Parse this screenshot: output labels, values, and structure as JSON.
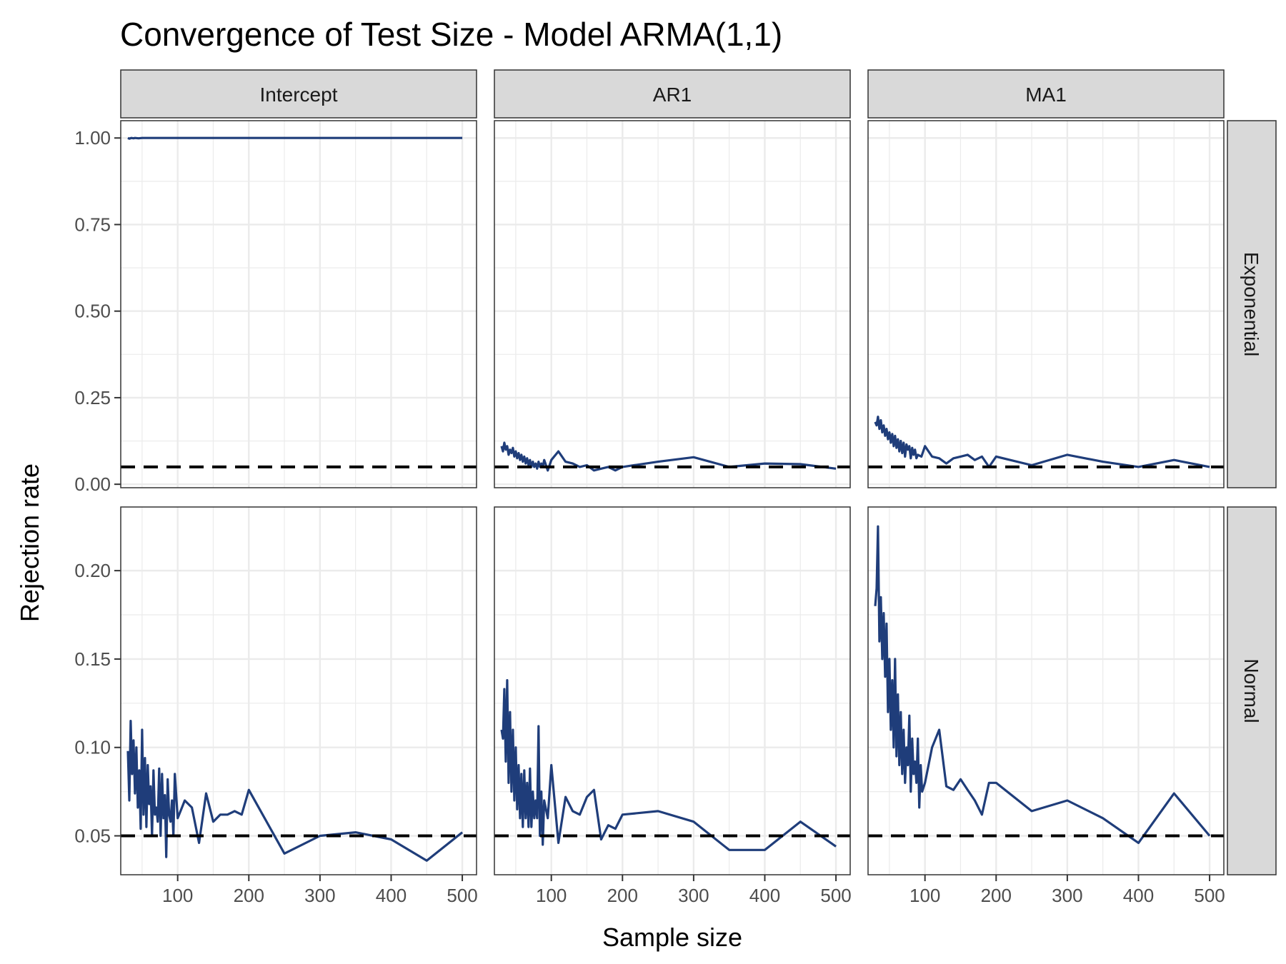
{
  "chart_data": {
    "type": "line",
    "title": "Convergence of Test Size - Model ARMA(1,1)",
    "xlabel": "Sample size",
    "ylabel": "Rejection rate",
    "columns": [
      "Intercept",
      "AR1",
      "MA1"
    ],
    "rows": [
      "Exponential",
      "Normal"
    ],
    "x_ticks": [
      100,
      200,
      300,
      400,
      500
    ],
    "xlim": [
      20,
      520
    ],
    "reference_line": 0.05,
    "colors": {
      "line": "#1f3d7a",
      "reference": "#000000",
      "strip": "#d9d9d9",
      "grid": "#ebebeb"
    },
    "row_scales": {
      "Exponential": {
        "ylim": [
          -0.01,
          1.05
        ],
        "ticks": [
          0.0,
          0.25,
          0.5,
          0.75,
          1.0
        ],
        "tick_labels": [
          "0.00",
          "0.25",
          "0.50",
          "0.75",
          "1.00"
        ]
      },
      "Normal": {
        "ylim": [
          0.028,
          0.236
        ],
        "ticks": [
          0.05,
          0.1,
          0.15,
          0.2
        ],
        "tick_labels": [
          "0.05",
          "0.10",
          "0.15",
          "0.20"
        ]
      }
    },
    "panels": [
      {
        "row": "Exponential",
        "col": "Intercept",
        "x": [
          30,
          32,
          35,
          38,
          40,
          45,
          50,
          60,
          80,
          100,
          150,
          200,
          300,
          400,
          500
        ],
        "y": [
          1.0,
          0.998,
          1.0,
          0.999,
          1.0,
          0.999,
          1.0,
          1.0,
          1.0,
          1.0,
          1.0,
          1.0,
          1.0,
          1.0,
          1.0
        ]
      },
      {
        "row": "Exponential",
        "col": "AR1",
        "x": [
          30,
          32,
          34,
          36,
          38,
          40,
          42,
          44,
          46,
          48,
          50,
          52,
          54,
          56,
          58,
          60,
          62,
          64,
          66,
          68,
          70,
          72,
          74,
          76,
          78,
          80,
          82,
          84,
          86,
          88,
          90,
          95,
          100,
          110,
          120,
          130,
          140,
          150,
          160,
          170,
          180,
          190,
          200,
          250,
          300,
          350,
          400,
          450,
          500
        ],
        "y": [
          0.11,
          0.095,
          0.12,
          0.1,
          0.11,
          0.085,
          0.1,
          0.09,
          0.105,
          0.08,
          0.095,
          0.075,
          0.09,
          0.07,
          0.085,
          0.065,
          0.08,
          0.06,
          0.075,
          0.055,
          0.07,
          0.05,
          0.065,
          0.05,
          0.06,
          0.045,
          0.065,
          0.05,
          0.06,
          0.05,
          0.07,
          0.04,
          0.07,
          0.095,
          0.065,
          0.06,
          0.05,
          0.055,
          0.04,
          0.045,
          0.05,
          0.04,
          0.05,
          0.065,
          0.078,
          0.05,
          0.06,
          0.058,
          0.045
        ]
      },
      {
        "row": "Exponential",
        "col": "MA1",
        "x": [
          30,
          32,
          34,
          36,
          38,
          40,
          42,
          44,
          46,
          48,
          50,
          52,
          54,
          56,
          58,
          60,
          62,
          64,
          66,
          68,
          70,
          72,
          74,
          76,
          78,
          80,
          82,
          84,
          86,
          88,
          90,
          95,
          100,
          110,
          120,
          130,
          140,
          150,
          160,
          170,
          180,
          190,
          200,
          250,
          300,
          350,
          400,
          450,
          500
        ],
        "y": [
          0.18,
          0.17,
          0.195,
          0.16,
          0.185,
          0.15,
          0.17,
          0.14,
          0.16,
          0.13,
          0.15,
          0.12,
          0.145,
          0.11,
          0.14,
          0.105,
          0.13,
          0.095,
          0.125,
          0.09,
          0.12,
          0.08,
          0.115,
          0.1,
          0.11,
          0.075,
          0.105,
          0.085,
          0.1,
          0.075,
          0.085,
          0.08,
          0.11,
          0.08,
          0.075,
          0.06,
          0.075,
          0.08,
          0.085,
          0.07,
          0.08,
          0.05,
          0.08,
          0.055,
          0.085,
          0.065,
          0.05,
          0.07,
          0.05
        ]
      },
      {
        "row": "Normal",
        "col": "Intercept",
        "x": [
          30,
          32,
          34,
          36,
          38,
          40,
          42,
          44,
          46,
          48,
          50,
          52,
          54,
          56,
          58,
          60,
          62,
          64,
          66,
          68,
          70,
          72,
          74,
          76,
          78,
          80,
          82,
          84,
          86,
          88,
          90,
          92,
          94,
          96,
          100,
          110,
          120,
          130,
          140,
          150,
          160,
          170,
          180,
          190,
          200,
          250,
          300,
          350,
          400,
          450,
          500
        ],
        "y": [
          0.098,
          0.07,
          0.115,
          0.085,
          0.104,
          0.074,
          0.1,
          0.066,
          0.087,
          0.054,
          0.11,
          0.062,
          0.094,
          0.055,
          0.09,
          0.068,
          0.078,
          0.05,
          0.087,
          0.062,
          0.066,
          0.058,
          0.088,
          0.05,
          0.085,
          0.06,
          0.073,
          0.038,
          0.082,
          0.062,
          0.058,
          0.07,
          0.05,
          0.085,
          0.06,
          0.07,
          0.066,
          0.046,
          0.074,
          0.058,
          0.062,
          0.062,
          0.064,
          0.062,
          0.076,
          0.04,
          0.05,
          0.052,
          0.048,
          0.036,
          0.052
        ]
      },
      {
        "row": "Normal",
        "col": "AR1",
        "x": [
          30,
          32,
          34,
          36,
          38,
          40,
          42,
          44,
          46,
          48,
          50,
          52,
          54,
          56,
          58,
          60,
          62,
          64,
          66,
          68,
          70,
          72,
          74,
          76,
          78,
          80,
          82,
          84,
          86,
          88,
          90,
          95,
          100,
          110,
          120,
          130,
          140,
          150,
          160,
          170,
          180,
          190,
          200,
          250,
          300,
          350,
          400,
          450,
          500
        ],
        "y": [
          0.11,
          0.105,
          0.133,
          0.092,
          0.138,
          0.08,
          0.12,
          0.075,
          0.11,
          0.07,
          0.1,
          0.065,
          0.09,
          0.06,
          0.085,
          0.055,
          0.087,
          0.06,
          0.08,
          0.055,
          0.088,
          0.055,
          0.075,
          0.06,
          0.07,
          0.06,
          0.112,
          0.05,
          0.075,
          0.045,
          0.07,
          0.06,
          0.09,
          0.046,
          0.072,
          0.064,
          0.062,
          0.072,
          0.076,
          0.048,
          0.056,
          0.054,
          0.062,
          0.064,
          0.058,
          0.042,
          0.042,
          0.058,
          0.044
        ]
      },
      {
        "row": "Normal",
        "col": "MA1",
        "x": [
          30,
          32,
          34,
          36,
          38,
          40,
          42,
          44,
          46,
          48,
          50,
          52,
          54,
          56,
          58,
          60,
          62,
          64,
          66,
          68,
          70,
          72,
          74,
          76,
          78,
          80,
          82,
          84,
          86,
          88,
          90,
          92,
          94,
          96,
          100,
          110,
          120,
          130,
          140,
          150,
          160,
          170,
          180,
          190,
          200,
          250,
          300,
          350,
          400,
          450,
          500
        ],
        "y": [
          0.18,
          0.19,
          0.225,
          0.16,
          0.185,
          0.15,
          0.176,
          0.14,
          0.17,
          0.12,
          0.15,
          0.11,
          0.138,
          0.1,
          0.15,
          0.095,
          0.13,
          0.09,
          0.12,
          0.085,
          0.11,
          0.08,
          0.1,
          0.09,
          0.118,
          0.075,
          0.105,
          0.085,
          0.092,
          0.08,
          0.105,
          0.066,
          0.09,
          0.075,
          0.08,
          0.1,
          0.11,
          0.078,
          0.076,
          0.082,
          0.076,
          0.07,
          0.062,
          0.08,
          0.08,
          0.064,
          0.07,
          0.06,
          0.046,
          0.074,
          0.05
        ]
      }
    ]
  }
}
